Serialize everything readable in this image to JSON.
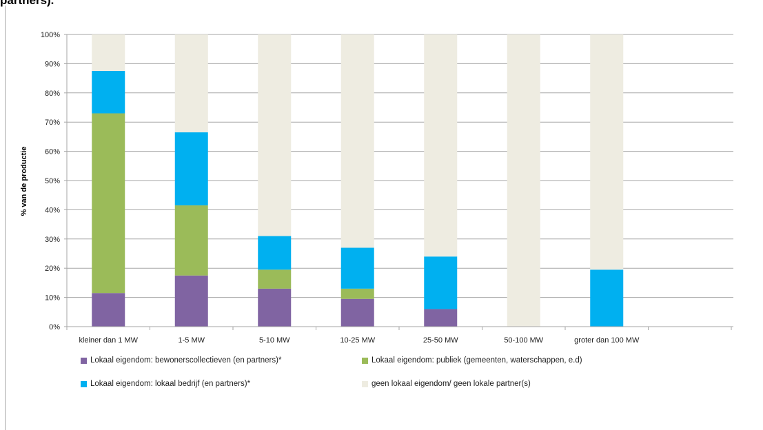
{
  "title_fragment": "partners).",
  "chart_data": {
    "type": "bar",
    "stacked": true,
    "categories": [
      "kleiner dan 1 MW",
      "1-5 MW",
      "5-10 MW",
      "10-25 MW",
      "25-50 MW",
      "50-100 MW",
      "groter dan 100 MW"
    ],
    "series": [
      {
        "name": "Lokaal eigendom: bewonerscollectieven (en partners)*",
        "color": "#8064a2",
        "values": [
          11.5,
          17.5,
          13,
          9.5,
          6,
          0,
          0
        ]
      },
      {
        "name": "Lokaal eigendom: publiek (gemeenten, waterschappen, e.d)",
        "color": "#9bbb59",
        "values": [
          61.5,
          24,
          6.5,
          3.5,
          0,
          0,
          0
        ]
      },
      {
        "name": "Lokaal eigendom: lokaal bedrijf (en partners)*",
        "color": "#00b0f0",
        "values": [
          14.5,
          25,
          11.5,
          14,
          18,
          0,
          19.5
        ]
      },
      {
        "name": "geen lokaal eigendom/ geen lokale partner(s)",
        "color": "#eeece1",
        "values": [
          12.5,
          33.5,
          69,
          73,
          76,
          100,
          80.5
        ]
      }
    ],
    "ylabel": "% van de productie",
    "ylim": [
      0,
      100
    ],
    "yticks": [
      "0%",
      "10%",
      "20%",
      "30%",
      "40%",
      "50%",
      "60%",
      "70%",
      "80%",
      "90%",
      "100%"
    ],
    "grid": true,
    "legend_position": "bottom"
  }
}
